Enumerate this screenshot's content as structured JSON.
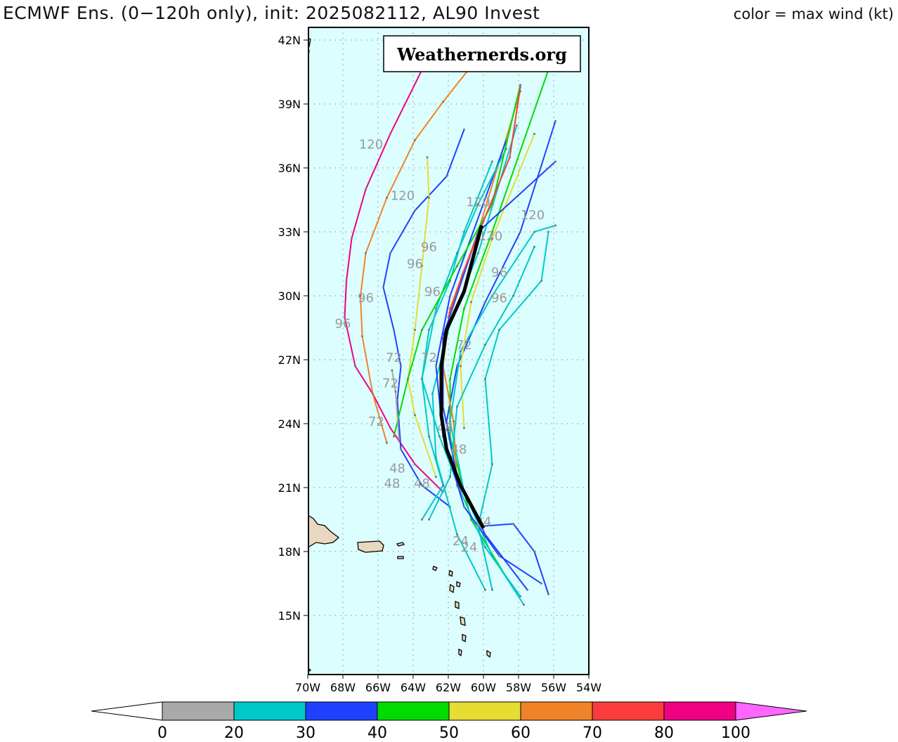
{
  "title": "ECMWF Ens. (0−120h only), init: 2025082112, AL90 Invest",
  "legend_title": "color = max wind (kt)",
  "watermark": "Weathernerds.org",
  "map": {
    "lon_range": [
      -70,
      -54
    ],
    "lat_range": [
      12.3,
      42.6
    ],
    "lon_ticks": [
      "70W",
      "68W",
      "66W",
      "64W",
      "62W",
      "60W",
      "58W",
      "56W",
      "54W"
    ],
    "lat_ticks": [
      "15N",
      "18N",
      "21N",
      "24N",
      "27N",
      "30N",
      "33N",
      "36N",
      "39N",
      "42N"
    ],
    "ocean_color": "#dcfeff"
  },
  "colorbar": {
    "ticks": [
      "0",
      "20",
      "30",
      "40",
      "50",
      "60",
      "70",
      "80",
      "100"
    ],
    "colors": [
      "#a9a9a9",
      "#00c8c8",
      "#2040ff",
      "#00dc00",
      "#e6dc32",
      "#f08228",
      "#fa3c3c",
      "#f00082"
    ],
    "over_color": "#ff66ff",
    "under_color": "#ffffff"
  },
  "mean_track": [
    [
      -60.0,
      19.1
    ],
    [
      -61.3,
      21.1
    ],
    [
      -62.1,
      22.8
    ],
    [
      -62.4,
      24.4
    ],
    [
      -62.4,
      26.7
    ],
    [
      -62.1,
      28.4
    ],
    [
      -61.1,
      30.2
    ],
    [
      -60.1,
      33.3
    ]
  ],
  "tracks": [
    {
      "color": "#f00082",
      "points": [
        [
          -62.3,
          20.8
        ],
        [
          -63.9,
          22.1
        ],
        [
          -65.3,
          23.8
        ],
        [
          -66.3,
          25.4
        ],
        [
          -67.3,
          26.7
        ],
        [
          -67.9,
          29.0
        ],
        [
          -67.8,
          30.7
        ],
        [
          -67.5,
          32.7
        ],
        [
          -66.7,
          35.0
        ],
        [
          -65.3,
          37.6
        ],
        [
          -63.5,
          40.6
        ]
      ]
    },
    {
      "color": "#f08228",
      "points": [
        [
          -65.5,
          23.1
        ],
        [
          -66.3,
          25.4
        ],
        [
          -66.9,
          28.1
        ],
        [
          -67.0,
          30.0
        ],
        [
          -66.7,
          32.0
        ],
        [
          -65.5,
          34.6
        ],
        [
          -63.9,
          37.3
        ],
        [
          -62.3,
          39.1
        ],
        [
          -59.9,
          41.6
        ]
      ]
    },
    {
      "color": "#2040ff",
      "points": [
        [
          -61.9,
          20.1
        ],
        [
          -63.5,
          21.1
        ],
        [
          -64.7,
          22.8
        ],
        [
          -64.9,
          25.1
        ],
        [
          -64.7,
          26.7
        ],
        [
          -65.1,
          28.4
        ],
        [
          -65.7,
          30.4
        ],
        [
          -65.3,
          32.0
        ],
        [
          -63.9,
          34.0
        ],
        [
          -62.1,
          35.6
        ],
        [
          -61.1,
          37.8
        ]
      ]
    },
    {
      "color": "#e6dc32",
      "points": [
        [
          -62.7,
          21.5
        ],
        [
          -63.9,
          24.4
        ],
        [
          -64.3,
          26.1
        ],
        [
          -63.9,
          28.4
        ],
        [
          -63.5,
          31.4
        ],
        [
          -63.1,
          34.6
        ],
        [
          -63.2,
          36.5
        ]
      ]
    },
    {
      "color": "#2040ff",
      "points": [
        [
          -59.9,
          19.2
        ],
        [
          -58.3,
          19.3
        ],
        [
          -57.1,
          18.0
        ],
        [
          -56.3,
          16.0
        ]
      ]
    },
    {
      "color": "#2040ff",
      "points": [
        [
          -57.5,
          16.2
        ],
        [
          -59.9,
          18.8
        ],
        [
          -61.5,
          21.5
        ],
        [
          -62.1,
          24.1
        ],
        [
          -61.5,
          26.7
        ],
        [
          -59.9,
          29.7
        ],
        [
          -57.9,
          33.0
        ],
        [
          -55.9,
          38.2
        ]
      ]
    },
    {
      "color": "#00dc00",
      "points": [
        [
          -58.7,
          16.8
        ],
        [
          -60.7,
          19.5
        ],
        [
          -61.9,
          23.4
        ],
        [
          -61.9,
          26.1
        ],
        [
          -61.1,
          29.4
        ],
        [
          -59.5,
          33.0
        ],
        [
          -56.3,
          40.6
        ]
      ]
    },
    {
      "color": "#00c8c8",
      "points": [
        [
          -59.9,
          16.2
        ],
        [
          -61.5,
          18.8
        ],
        [
          -62.7,
          22.4
        ],
        [
          -62.9,
          25.4
        ],
        [
          -61.9,
          28.7
        ],
        [
          -60.3,
          32.0
        ],
        [
          -58.1,
          38.0
        ]
      ]
    },
    {
      "color": "#00c8c8",
      "points": [
        [
          -57.7,
          15.5
        ],
        [
          -59.5,
          17.8
        ],
        [
          -61.1,
          20.8
        ],
        [
          -61.9,
          24.1
        ],
        [
          -61.3,
          27.4
        ],
        [
          -59.5,
          30.0
        ],
        [
          -57.1,
          33.0
        ],
        [
          -55.9,
          33.3
        ]
      ]
    },
    {
      "color": "#f08228",
      "points": [
        [
          -61.5,
          21.1
        ],
        [
          -61.7,
          24.1
        ],
        [
          -62.3,
          26.7
        ],
        [
          -61.9,
          29.4
        ],
        [
          -60.3,
          33.0
        ],
        [
          -57.9,
          39.6
        ]
      ]
    },
    {
      "color": "#00c8c8",
      "points": [
        [
          -57.9,
          15.9
        ],
        [
          -59.9,
          18.2
        ],
        [
          -61.3,
          20.8
        ],
        [
          -62.5,
          23.4
        ],
        [
          -63.5,
          26.1
        ],
        [
          -63.1,
          28.4
        ],
        [
          -61.9,
          30.7
        ],
        [
          -61.1,
          33.0
        ],
        [
          -59.5,
          36.3
        ]
      ]
    },
    {
      "color": "#2040ff",
      "points": [
        [
          -56.7,
          16.5
        ],
        [
          -59.1,
          17.8
        ],
        [
          -61.1,
          20.1
        ],
        [
          -62.3,
          23.4
        ],
        [
          -62.7,
          26.7
        ],
        [
          -61.9,
          30.0
        ],
        [
          -58.7,
          37.3
        ]
      ]
    },
    {
      "color": "#00c8c8",
      "points": [
        [
          -63.5,
          19.5
        ],
        [
          -62.3,
          21.1
        ],
        [
          -63.1,
          23.4
        ],
        [
          -63.5,
          26.1
        ],
        [
          -62.7,
          29.4
        ],
        [
          -61.5,
          32.0
        ],
        [
          -60.3,
          34.3
        ],
        [
          -58.7,
          36.9
        ]
      ]
    },
    {
      "color": "#e6dc32",
      "points": [
        [
          -61.1,
          23.8
        ],
        [
          -61.3,
          26.7
        ],
        [
          -60.7,
          29.7
        ],
        [
          -59.5,
          32.7
        ],
        [
          -57.1,
          37.6
        ]
      ]
    },
    {
      "color": "#00c8c8",
      "points": [
        [
          -59.5,
          16.2
        ],
        [
          -60.3,
          19.2
        ],
        [
          -59.5,
          22.1
        ],
        [
          -59.9,
          26.1
        ],
        [
          -59.1,
          28.4
        ],
        [
          -56.7,
          30.7
        ],
        [
          -56.3,
          33.0
        ]
      ]
    },
    {
      "color": "#2040ff",
      "points": [
        [
          -61.5,
          21.5
        ],
        [
          -62.3,
          24.8
        ],
        [
          -62.3,
          28.1
        ],
        [
          -60.3,
          33.0
        ],
        [
          -55.9,
          36.3
        ]
      ]
    },
    {
      "color": "#00dc00",
      "points": [
        [
          -65.1,
          23.4
        ],
        [
          -64.3,
          26.1
        ],
        [
          -63.5,
          28.4
        ],
        [
          -61.5,
          31.4
        ],
        [
          -59.5,
          34.3
        ],
        [
          -57.9,
          39.9
        ]
      ]
    },
    {
      "color": "#00c8c8",
      "points": [
        [
          -63.1,
          19.5
        ],
        [
          -61.9,
          21.5
        ],
        [
          -61.5,
          24.8
        ],
        [
          -59.9,
          27.7
        ],
        [
          -58.3,
          30.0
        ],
        [
          -57.1,
          32.3
        ]
      ]
    },
    {
      "color": "#fa3c3c",
      "points": [
        [
          -62.0,
          29.0
        ],
        [
          -61.2,
          31.0
        ],
        [
          -60.0,
          33.5
        ],
        [
          -58.5,
          36.5
        ],
        [
          -57.9,
          39.8
        ]
      ]
    },
    {
      "color": "#a9a9a9",
      "points": [
        [
          -64.8,
          23.2
        ],
        [
          -65.0,
          25.5
        ],
        [
          -65.2,
          26.5
        ]
      ]
    }
  ],
  "hour_labels": [
    {
      "text": "120",
      "lon": -66.4,
      "lat": 36.9
    },
    {
      "text": "120",
      "lon": -64.6,
      "lat": 34.5
    },
    {
      "text": "120",
      "lon": -60.3,
      "lat": 34.2
    },
    {
      "text": "120",
      "lon": -57.2,
      "lat": 33.6
    },
    {
      "text": "120",
      "lon": -59.6,
      "lat": 32.6
    },
    {
      "text": "96",
      "lon": -68.0,
      "lat": 28.5
    },
    {
      "text": "96",
      "lon": -66.7,
      "lat": 29.7
    },
    {
      "text": "96",
      "lon": -63.9,
      "lat": 31.3
    },
    {
      "text": "96",
      "lon": -63.1,
      "lat": 32.1
    },
    {
      "text": "96",
      "lon": -62.9,
      "lat": 30.0
    },
    {
      "text": "96",
      "lon": -59.1,
      "lat": 30.9
    },
    {
      "text": "96",
      "lon": -59.1,
      "lat": 29.7
    },
    {
      "text": "72",
      "lon": -65.1,
      "lat": 26.9
    },
    {
      "text": "72",
      "lon": -65.3,
      "lat": 25.7
    },
    {
      "text": "72",
      "lon": -66.1,
      "lat": 23.9
    },
    {
      "text": "72",
      "lon": -63.1,
      "lat": 26.9
    },
    {
      "text": "72",
      "lon": -61.1,
      "lat": 27.5
    },
    {
      "text": "48",
      "lon": -65.2,
      "lat": 21.0
    },
    {
      "text": "48",
      "lon": -64.9,
      "lat": 21.7
    },
    {
      "text": "48",
      "lon": -63.5,
      "lat": 21.0
    },
    {
      "text": "48",
      "lon": -62.2,
      "lat": 23.6
    },
    {
      "text": "48",
      "lon": -61.4,
      "lat": 22.6
    },
    {
      "text": "24",
      "lon": -61.3,
      "lat": 18.3
    },
    {
      "text": "24",
      "lon": -60.8,
      "lat": 18.0
    },
    {
      "text": "24",
      "lon": -60.0,
      "lat": 19.2
    }
  ]
}
